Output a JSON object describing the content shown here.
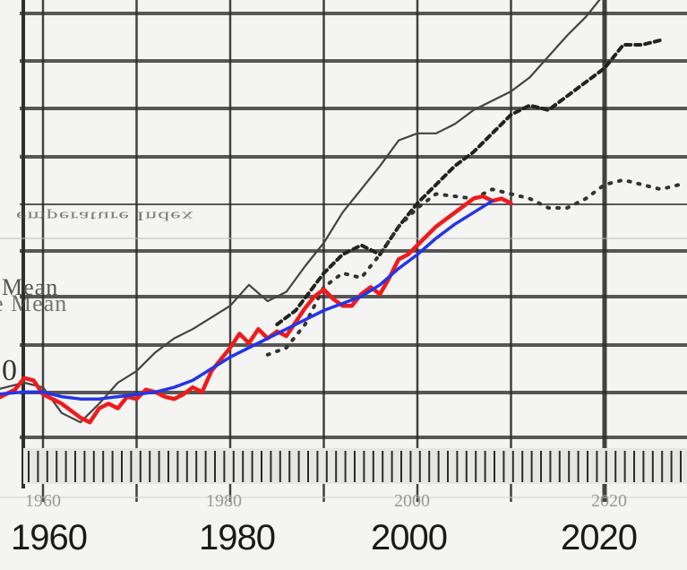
{
  "chart_data": {
    "type": "line",
    "title": "",
    "xlabel": "",
    "ylabel": "",
    "xlim": [
      1955,
      2028
    ],
    "ylim": [
      -0.35,
      1.75
    ],
    "x_ticks": [
      "1960",
      "1980",
      "2000",
      "2020"
    ],
    "ghost_x_ticks": [
      "1960",
      "1980",
      "2000",
      "2020"
    ],
    "legend_fragments": [
      "Mean",
      "e Mean"
    ],
    "title_fragment": "emperature Index",
    "left_fragment_label": "0",
    "series": [
      {
        "name": "Red annual mean (overlay)",
        "color": "#ee1c1c",
        "x": [
          1955,
          1957,
          1958,
          1959,
          1960,
          1961,
          1962,
          1963,
          1964,
          1965,
          1966,
          1967,
          1968,
          1969,
          1970,
          1971,
          1972,
          1973,
          1974,
          1975,
          1976,
          1977,
          1978,
          1979,
          1980,
          1981,
          1982,
          1983,
          1984,
          1985,
          1986,
          1987,
          1988,
          1989,
          1990,
          1991,
          1992,
          1993,
          1994,
          1995,
          1996,
          1997,
          1998,
          1999,
          2000,
          2001,
          2002,
          2003,
          2004,
          2005,
          2006,
          2007,
          2008,
          2009,
          2010
        ],
        "y": [
          -0.02,
          0.02,
          0.07,
          0.06,
          0.0,
          -0.02,
          -0.04,
          -0.07,
          -0.1,
          -0.12,
          -0.06,
          -0.04,
          -0.06,
          -0.01,
          -0.02,
          0.02,
          0.01,
          -0.01,
          -0.02,
          0.0,
          0.03,
          0.01,
          0.1,
          0.15,
          0.2,
          0.26,
          0.22,
          0.28,
          0.24,
          0.27,
          0.25,
          0.31,
          0.37,
          0.42,
          0.45,
          0.41,
          0.38,
          0.38,
          0.43,
          0.46,
          0.43,
          0.5,
          0.58,
          0.6,
          0.64,
          0.68,
          0.72,
          0.75,
          0.78,
          0.81,
          0.84,
          0.85,
          0.83,
          0.84,
          0.82
        ]
      },
      {
        "name": "Blue smoothed mean (overlay)",
        "color": "#2435e8",
        "x": [
          1955,
          1958,
          1960,
          1962,
          1964,
          1966,
          1968,
          1970,
          1972,
          1974,
          1976,
          1978,
          1980,
          1982,
          1984,
          1986,
          1988,
          1990,
          1992,
          1994,
          1996,
          1998,
          2000,
          2002,
          2004,
          2006,
          2008
        ],
        "y": [
          0.0,
          0.01,
          0.01,
          -0.01,
          -0.02,
          -0.02,
          -0.01,
          0.0,
          0.01,
          0.03,
          0.06,
          0.11,
          0.16,
          0.2,
          0.24,
          0.28,
          0.32,
          0.36,
          0.39,
          0.42,
          0.47,
          0.54,
          0.6,
          0.67,
          0.73,
          0.78,
          0.83
        ]
      },
      {
        "name": "Black thin line (upper projection)",
        "color": "#444444",
        "x": [
          1955,
          1958,
          1960,
          1962,
          1964,
          1966,
          1968,
          1970,
          1972,
          1974,
          1976,
          1978,
          1980,
          1982,
          1984,
          1986,
          1988,
          1990,
          1992,
          1994,
          1996,
          1998,
          2000,
          2002,
          2004,
          2006,
          2008,
          2010,
          2012,
          2014,
          2016,
          2018,
          2020,
          2023
        ],
        "y": [
          0.02,
          0.05,
          0.03,
          -0.08,
          -0.12,
          -0.04,
          0.05,
          0.1,
          0.18,
          0.24,
          0.28,
          0.33,
          0.38,
          0.47,
          0.4,
          0.44,
          0.55,
          0.65,
          0.78,
          0.88,
          0.98,
          1.09,
          1.12,
          1.12,
          1.16,
          1.22,
          1.26,
          1.3,
          1.36,
          1.45,
          1.54,
          1.62,
          1.72,
          1.83
        ]
      },
      {
        "name": "Dashed black line (middle projection)",
        "color": "#222222",
        "x": [
          1985,
          1987,
          1990,
          1992,
          1994,
          1996,
          1998,
          2000,
          2002,
          2004,
          2006,
          2008,
          2010,
          2012,
          2014,
          2016,
          2018,
          2020,
          2022,
          2024,
          2026
        ],
        "y": [
          0.3,
          0.36,
          0.52,
          0.6,
          0.64,
          0.6,
          0.72,
          0.82,
          0.9,
          0.98,
          1.04,
          1.12,
          1.2,
          1.24,
          1.22,
          1.28,
          1.34,
          1.4,
          1.5,
          1.5,
          1.52
        ]
      },
      {
        "name": "Dotted black line (lower projection)",
        "color": "#333333",
        "x": [
          1984,
          1986,
          1988,
          1990,
          1992,
          1994,
          1996,
          1998,
          2000,
          2002,
          2004,
          2006,
          2008,
          2010,
          2012,
          2014,
          2016,
          2018,
          2020,
          2022,
          2024,
          2026,
          2028
        ],
        "y": [
          0.17,
          0.2,
          0.3,
          0.46,
          0.52,
          0.5,
          0.6,
          0.72,
          0.8,
          0.86,
          0.85,
          0.84,
          0.88,
          0.86,
          0.84,
          0.8,
          0.8,
          0.84,
          0.9,
          0.92,
          0.9,
          0.88,
          0.9
        ]
      }
    ]
  },
  "colors": {
    "background": "#f4f4f2",
    "grid": "#3b3b3b",
    "red": "#ee1c1c",
    "blue": "#2435e8"
  }
}
